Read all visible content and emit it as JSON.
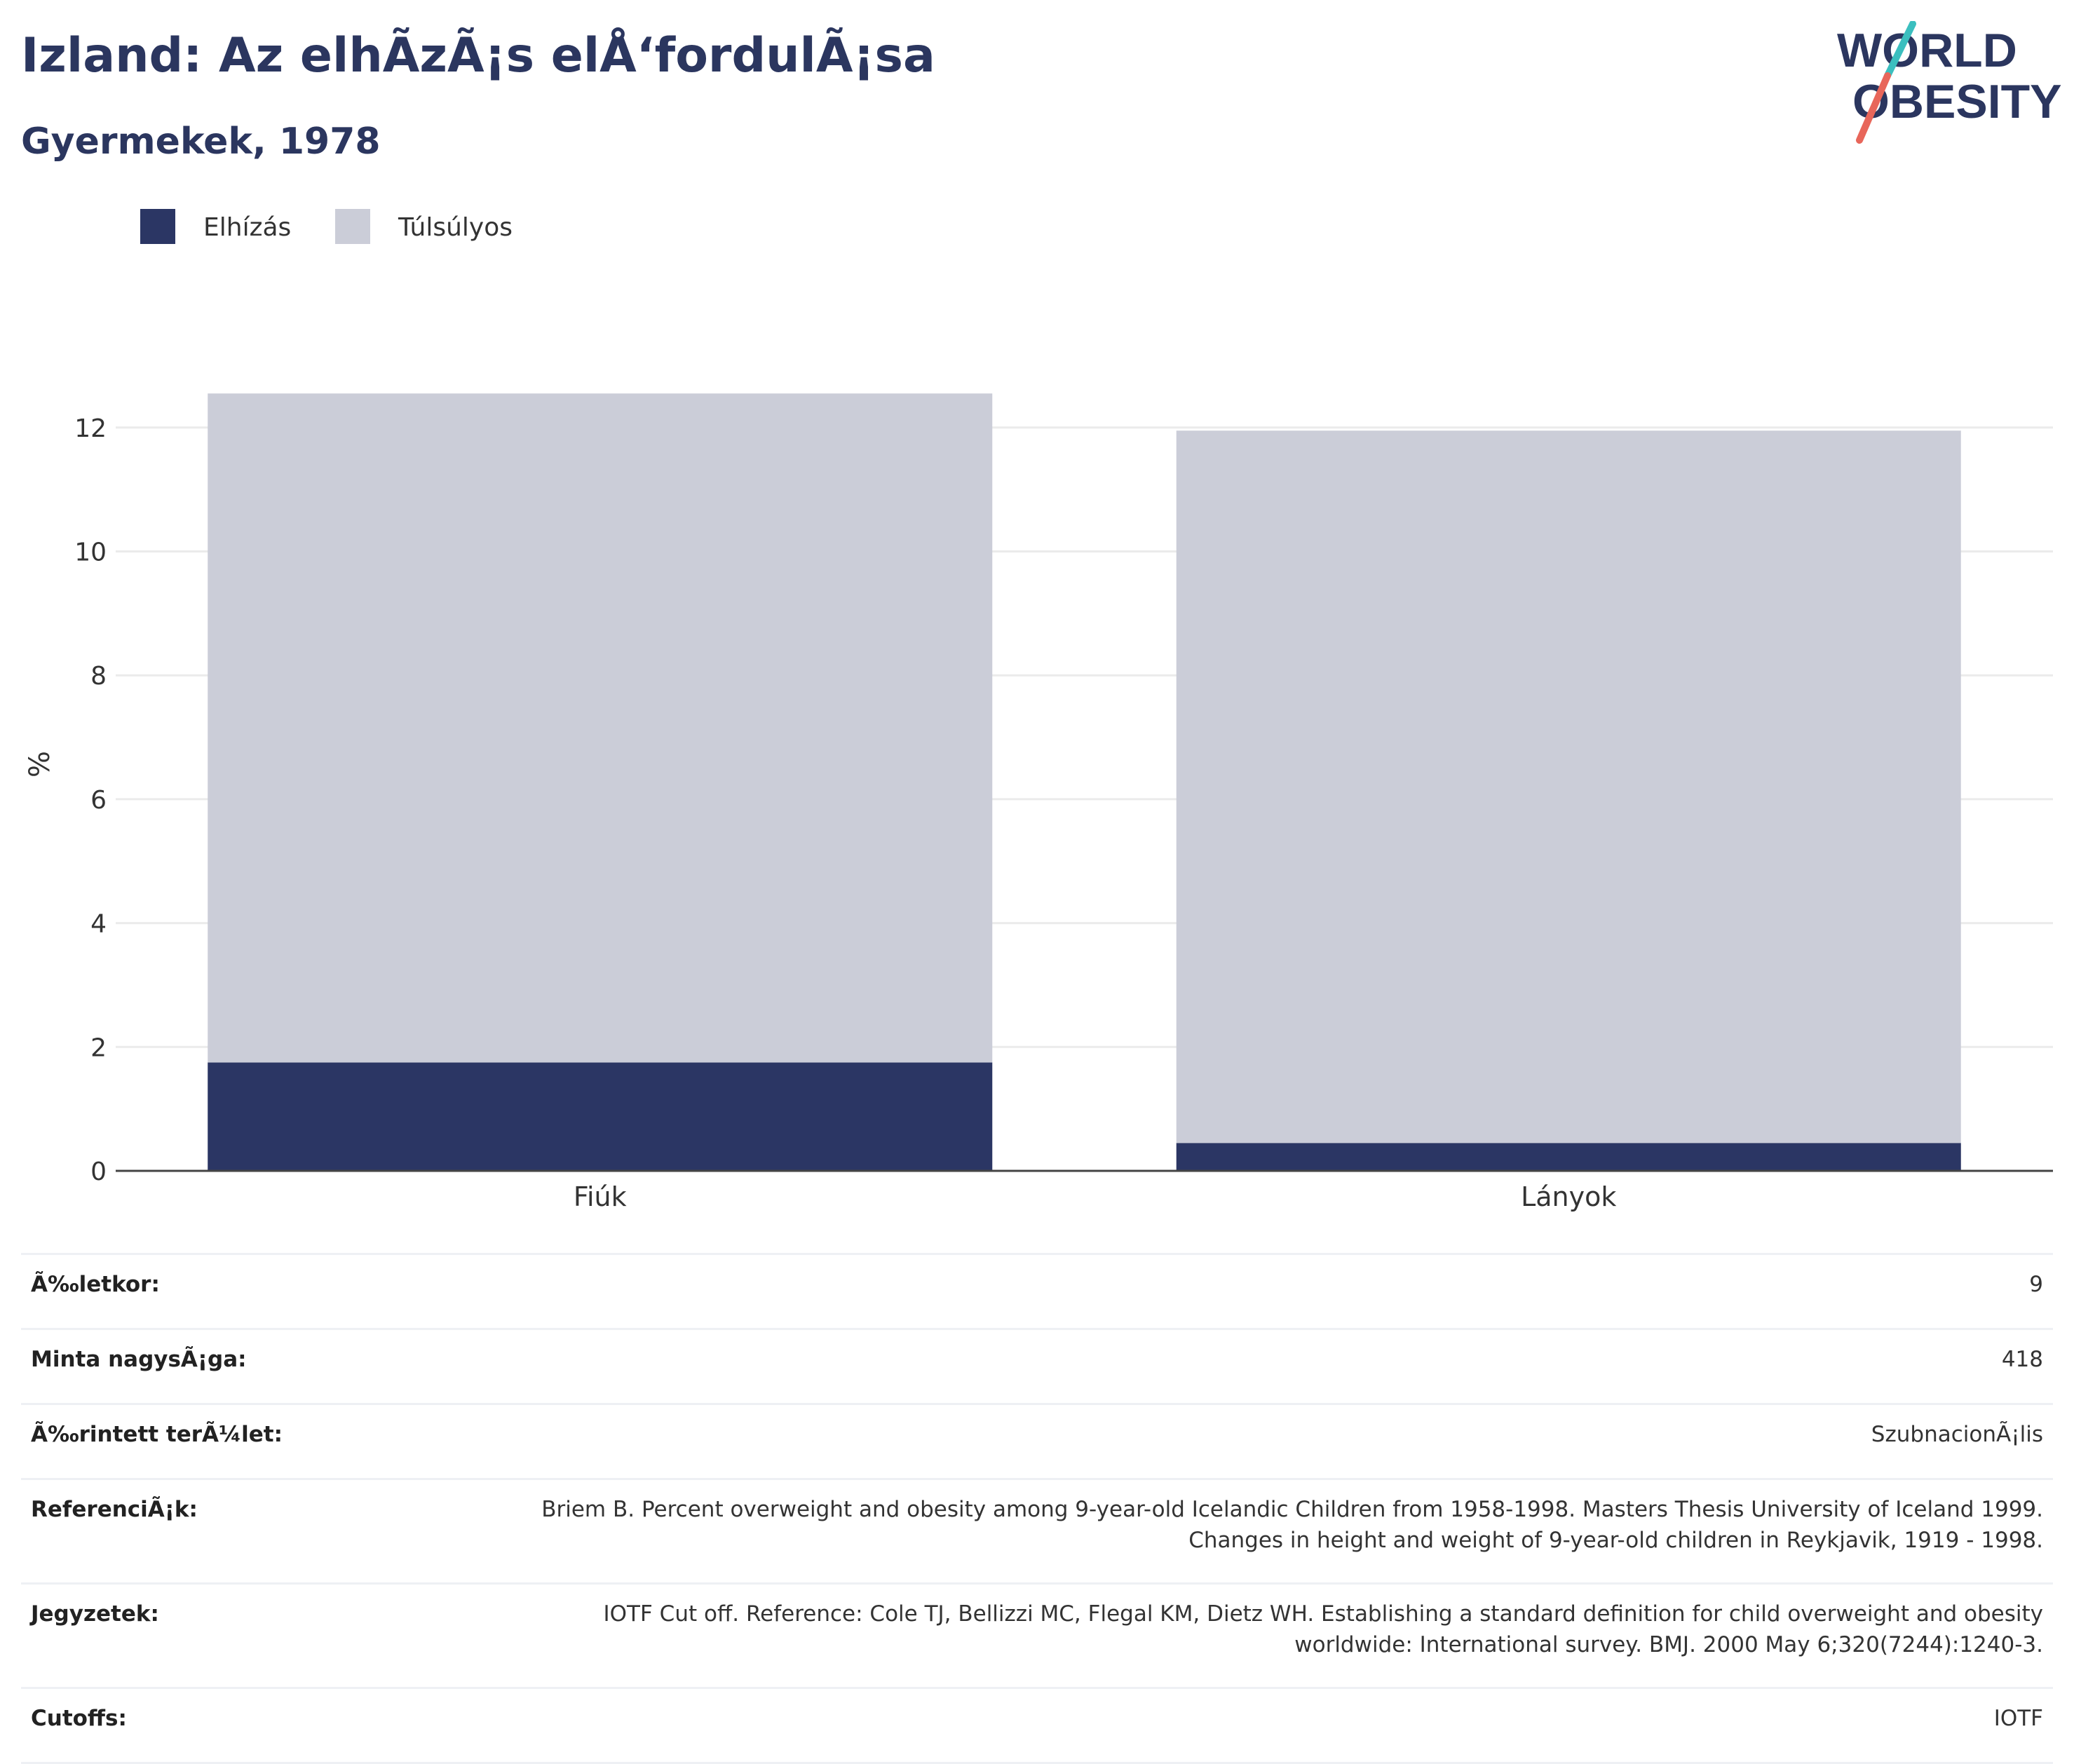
{
  "header": {
    "title": "Izland: Az elhÃzÃ¡s elÅ‘fordulÃ¡sa",
    "subtitle": "Gyermekek, 1978"
  },
  "logo": {
    "line1": "WORLD",
    "line2": "OBESITY",
    "colors": {
      "text": "#2b365f",
      "slash_top": "#3bbfbf",
      "slash_bottom": "#e8665a"
    }
  },
  "legend": [
    {
      "label": "Elhízás",
      "color": "#2b3664"
    },
    {
      "label": "Túlsúlyos",
      "color": "#cbcdd8"
    }
  ],
  "chart_data": {
    "type": "bar",
    "stacked": true,
    "categories": [
      "Fiúk",
      "Lányok"
    ],
    "series": [
      {
        "name": "Elhízás",
        "values": [
          1.75,
          0.45
        ],
        "color": "#2b3664"
      },
      {
        "name": "Túlsúlyos",
        "values": [
          10.8,
          11.5
        ],
        "color": "#cbcdd8"
      }
    ],
    "ylabel": "%",
    "ylim": [
      0,
      12.6
    ],
    "yticks": [
      0,
      2,
      4,
      6,
      8,
      10,
      12
    ],
    "grid": true
  },
  "info": [
    {
      "key": "Ã‰letkor:",
      "value": "9"
    },
    {
      "key": "Minta nagysÃ¡ga:",
      "value": "418"
    },
    {
      "key": "Ã‰rintett terÃ¼let:",
      "value": "SzubnacionÃ¡lis"
    },
    {
      "key": "ReferenciÃ¡k:",
      "value": "Briem B. Percent overweight and obesity among 9-year-old Icelandic Children from 1958-1998. Masters Thesis University of Iceland 1999. Changes in height and weight of 9-year-old children in Reykjavik, 1919 - 1998."
    },
    {
      "key": "Jegyzetek:",
      "value": "IOTF Cut off. Reference: Cole TJ, Bellizzi MC, Flegal KM, Dietz WH. Establishing a standard definition for child overweight and obesity worldwide: International survey. BMJ. 2000 May 6;320(7244):1240-3."
    },
    {
      "key": "Cutoffs:",
      "value": "IOTF"
    }
  ]
}
